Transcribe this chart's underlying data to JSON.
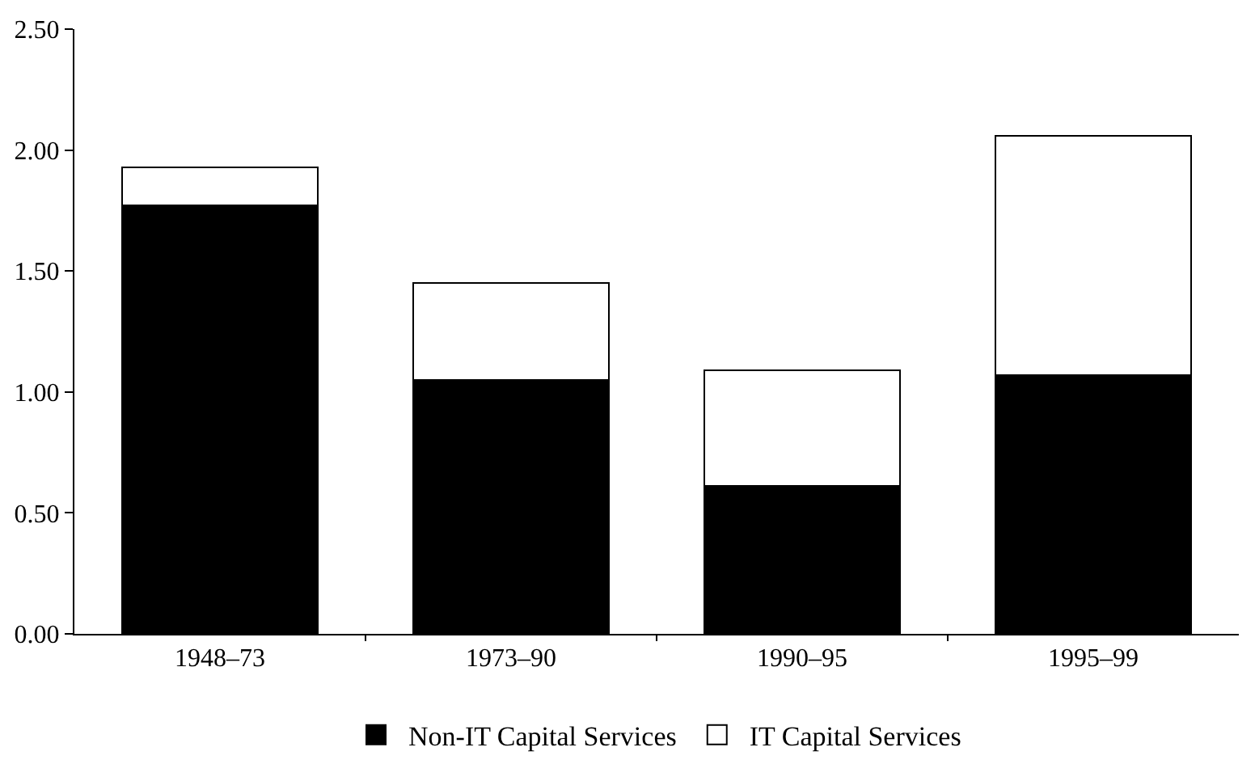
{
  "chart_data": {
    "type": "bar",
    "stacked": true,
    "categories": [
      "1948–73",
      "1973–90",
      "1990–95",
      "1995–99"
    ],
    "series": [
      {
        "name": "Non-IT Capital Services",
        "color": "#000000",
        "values": [
          1.77,
          1.05,
          0.61,
          1.07
        ]
      },
      {
        "name": "IT Capital Services",
        "color": "#ffffff",
        "values": [
          0.16,
          0.4,
          0.48,
          0.99
        ]
      }
    ],
    "ylim": [
      0,
      2.5
    ],
    "yticks": [
      {
        "value": 0,
        "label": "0.00"
      },
      {
        "value": 0.5,
        "label": "0.50"
      },
      {
        "value": 1,
        "label": "1.00"
      },
      {
        "value": 1.5,
        "label": "1.50"
      },
      {
        "value": 2,
        "label": "2.00"
      },
      {
        "value": 2.5,
        "label": "2.50"
      }
    ],
    "grid": false,
    "legend": "bottom"
  }
}
